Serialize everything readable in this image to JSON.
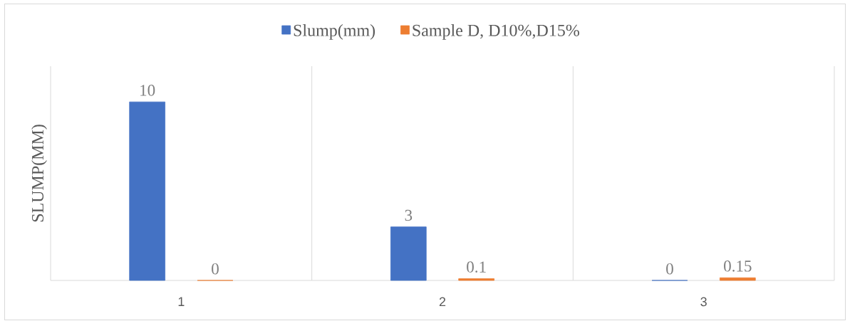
{
  "chart_data": {
    "type": "bar",
    "ylabel": "SLUMP(MM)",
    "categories": [
      "1",
      "2",
      "3"
    ],
    "series": [
      {
        "name": "Slump(mm)",
        "color": "#4472c4",
        "values": [
          10,
          3,
          0
        ]
      },
      {
        "name": "Sample D, D10%,D15%",
        "color": "#ed7d31",
        "values": [
          0,
          0.1,
          0.15
        ]
      }
    ],
    "data_labels": true,
    "grid": "x",
    "legend": "top",
    "tick_labels": "x"
  }
}
